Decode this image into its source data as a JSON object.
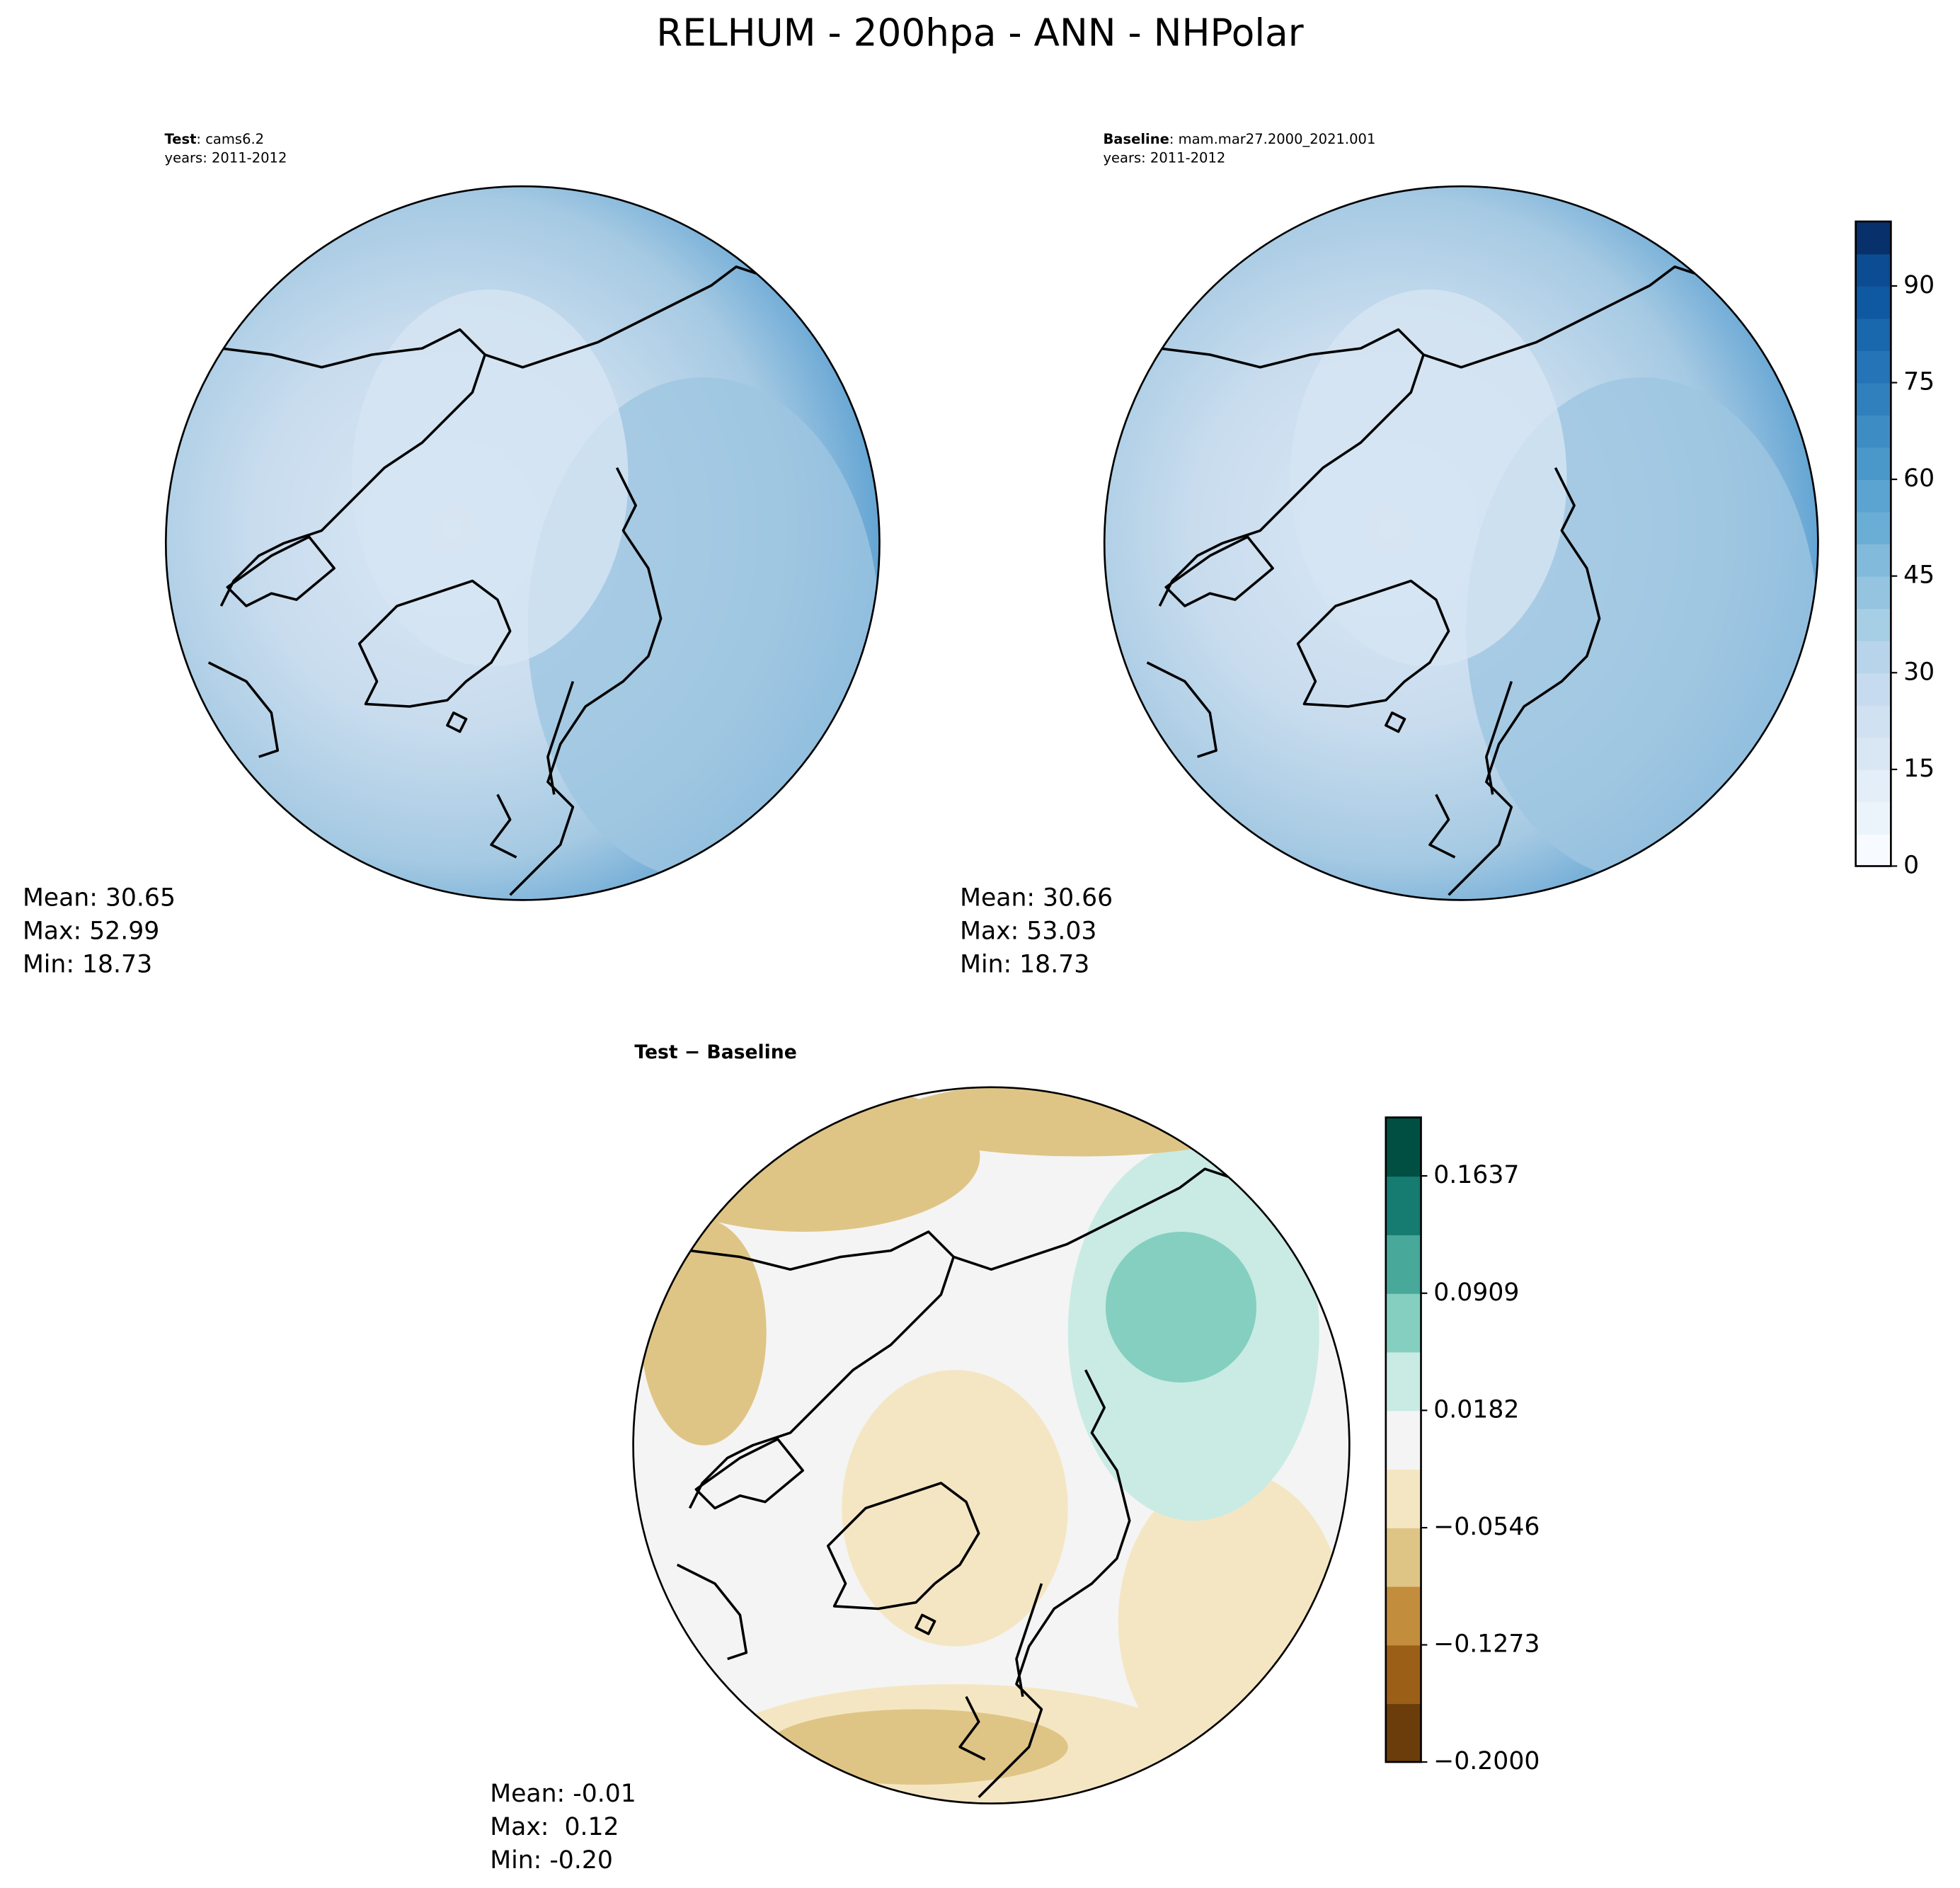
{
  "title": "RELHUM - 200hpa - ANN - NHPolar",
  "chart_data": [
    {
      "type": "contour-map",
      "label": "Test",
      "case": ": cams6.2",
      "years": "years: 2011-2012",
      "stats": [
        "Mean: 30.65",
        "Max: 52.99",
        "Min: 18.73"
      ]
    },
    {
      "type": "contour-map",
      "label": "Baseline",
      "case": ": mam.mar27.2000_2021.001",
      "years": "years: 2011-2012",
      "stats": [
        "Mean: 30.66",
        "Max: 53.03",
        "Min: 18.73"
      ],
      "colorbar": {
        "ylim": [
          0,
          100
        ],
        "yticks": [
          0,
          15,
          30,
          45,
          60,
          75,
          90
        ],
        "colors": [
          "#f7fbff",
          "#ecf4fb",
          "#e3eef8",
          "#d9e7f5",
          "#d0e1f2",
          "#c6dbef",
          "#b7d4ea",
          "#a6cee4",
          "#94c4df",
          "#82badb",
          "#6aaed6",
          "#5ba3d0",
          "#4a98c9",
          "#3d8dc4",
          "#3080bd",
          "#2474b7",
          "#1967ad",
          "#0e59a2",
          "#0b4c92",
          "#08306b"
        ]
      }
    },
    {
      "type": "contour-map",
      "label": "Test − Baseline",
      "stats": [
        "Mean: -0.01",
        "Max:  0.12",
        "Min: -0.20"
      ],
      "colorbar": {
        "ylim": [
          -0.2,
          0.2
        ],
        "yticks": [
          {
            "value": -0.2,
            "label": "−0.2000"
          },
          {
            "value": -0.1273,
            "label": "−0.1273"
          },
          {
            "value": -0.0546,
            "label": "−0.0546"
          },
          0.0182,
          0.0909,
          0.1637
        ],
        "colors": [
          "#6a3d0a",
          "#9b5f18",
          "#c38d3e",
          "#dfc585",
          "#f5e6c3",
          "#f4f4f4",
          "#c9ebe4",
          "#84cfc0",
          "#48a89a",
          "#167b71",
          "#004f42"
        ]
      }
    }
  ]
}
